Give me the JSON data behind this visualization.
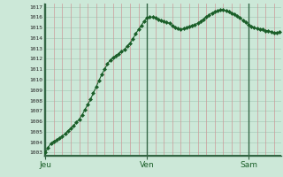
{
  "background_color": "#cce8d8",
  "plot_bg_color": "#cce8d8",
  "grid_color": "#aaccbb",
  "grid_color_red": "#cc9999",
  "line_color": "#1a5e28",
  "marker_color": "#1a5e28",
  "ylim_min": 1003,
  "ylim_max": 1017,
  "yticks": [
    1003,
    1004,
    1005,
    1006,
    1007,
    1008,
    1009,
    1010,
    1011,
    1012,
    1013,
    1014,
    1015,
    1016,
    1017
  ],
  "xtick_labels": [
    "Jeu",
    "Ven",
    "Sam"
  ],
  "xtick_positions": [
    0,
    36,
    72
  ],
  "pressure_values": [
    1003.0,
    1003.5,
    1003.9,
    1004.1,
    1004.2,
    1004.4,
    1004.6,
    1004.8,
    1005.1,
    1005.3,
    1005.6,
    1005.9,
    1006.2,
    1006.6,
    1007.1,
    1007.6,
    1008.1,
    1008.7,
    1009.3,
    1009.9,
    1010.5,
    1011.0,
    1011.5,
    1011.9,
    1012.1,
    1012.3,
    1012.5,
    1012.7,
    1012.9,
    1013.2,
    1013.5,
    1013.9,
    1014.4,
    1014.8,
    1015.2,
    1015.6,
    1015.9,
    1016.0,
    1016.0,
    1015.9,
    1015.8,
    1015.7,
    1015.6,
    1015.5,
    1015.4,
    1015.2,
    1015.0,
    1014.9,
    1014.8,
    1014.9,
    1015.0,
    1015.1,
    1015.2,
    1015.3,
    1015.4,
    1015.6,
    1015.8,
    1016.0,
    1016.2,
    1016.4,
    1016.5,
    1016.6,
    1016.7,
    1016.7,
    1016.6,
    1016.5,
    1016.4,
    1016.3,
    1016.1,
    1015.9,
    1015.7,
    1015.5,
    1015.3,
    1015.1,
    1015.0,
    1014.9,
    1014.8,
    1014.8,
    1014.7,
    1014.7,
    1014.6,
    1014.5,
    1014.5,
    1014.6
  ]
}
